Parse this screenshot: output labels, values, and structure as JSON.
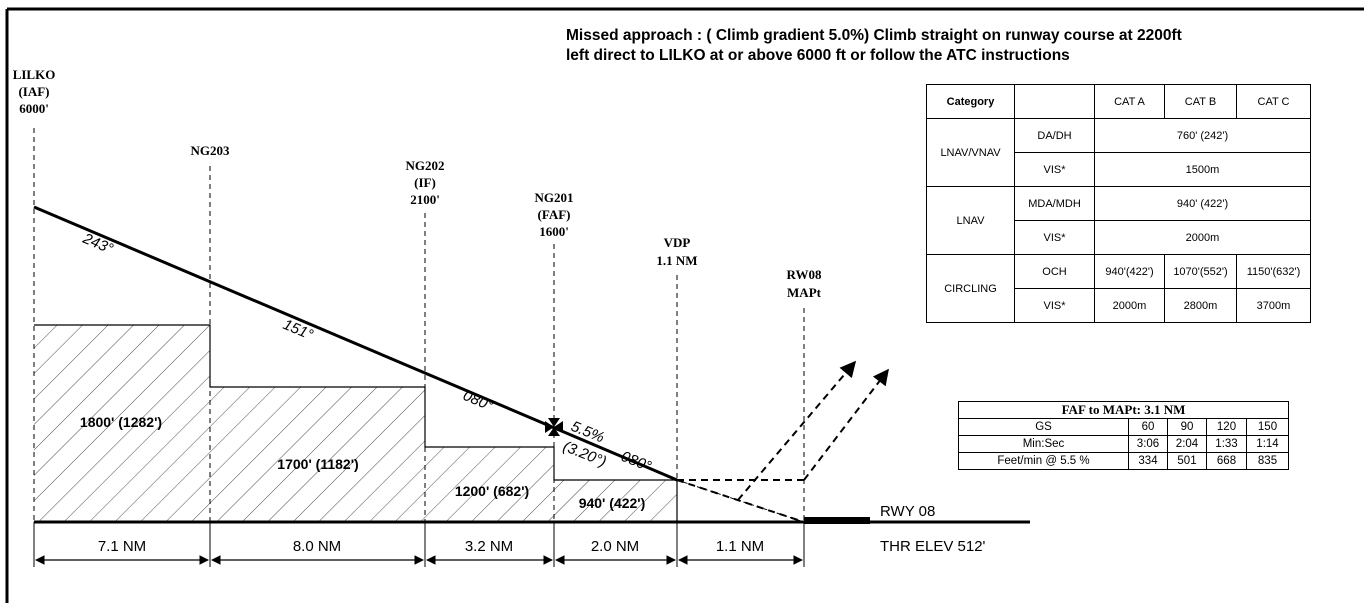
{
  "missed_approach": {
    "line1": "Missed approach : ( Climb gradient 5.0%) Climb straight on runway course at 2200ft",
    "line2": "left  direct to LILKO at or above 6000 ft or follow the ATC instructions"
  },
  "fixes": [
    {
      "lines": [
        "LILKO",
        "(IAF)",
        "6000'"
      ]
    },
    {
      "lines": [
        "NG203"
      ]
    },
    {
      "lines": [
        "NG202",
        "(IF)",
        "2100'"
      ]
    },
    {
      "lines": [
        "NG201",
        "(FAF)",
        "1600'"
      ]
    },
    {
      "lines": [
        "VDP",
        "1.1 NM"
      ]
    },
    {
      "lines": [
        "RW08",
        "MAPt"
      ]
    }
  ],
  "tracks": [
    "243°",
    "151°",
    "080°",
    "080°"
  ],
  "glidepath": {
    "gradient": "5.5%",
    "angle": "(3.20°)"
  },
  "segment_altitudes": [
    "1800' (1282')",
    "1700' (1182')",
    "1200' (682')",
    "940' (422')"
  ],
  "distances": [
    "7.1 NM",
    "8.0 NM",
    "3.2 NM",
    "2.0 NM",
    "1.1 NM"
  ],
  "runway": {
    "name": "RWY 08",
    "threshold": "THR ELEV 512'"
  },
  "minima": {
    "header": [
      "Category",
      "",
      "CAT A",
      "CAT B",
      "CAT C"
    ],
    "lnav_vnav": {
      "label": "LNAV/VNAV",
      "row1_label": "DA/DH",
      "row1_value": "760' (242')",
      "row2_label": "VIS*",
      "row2_value": "1500m"
    },
    "lnav": {
      "label": "LNAV",
      "row1_label": "MDA/MDH",
      "row1_value": "940' (422')",
      "row2_label": "VIS*",
      "row2_value": "2000m"
    },
    "circling": {
      "label": "CIRCLING",
      "row1_label": "OCH",
      "och": [
        "940'(422')",
        "1070'(552')",
        "1150'(632')"
      ],
      "row2_label": "VIS*",
      "vis": [
        "2000m",
        "2800m",
        "3700m"
      ]
    }
  },
  "timing": {
    "title": "FAF to MAPt: 3.1 NM",
    "rows": [
      [
        "GS",
        "60",
        "90",
        "120",
        "150"
      ],
      [
        "Min:Sec",
        "3:06",
        "2:04",
        "1:33",
        "1:14"
      ],
      [
        "Feet/min @ 5.5 %",
        "334",
        "501",
        "668",
        "835"
      ]
    ]
  }
}
